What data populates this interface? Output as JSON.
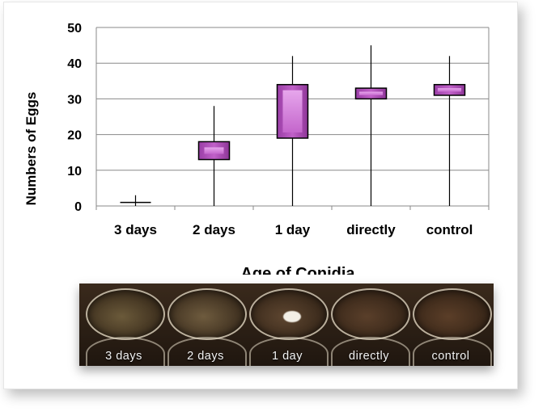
{
  "chart_data": {
    "type": "box",
    "ylabel": "Numbers of Eggs",
    "xlabel": "Age of Conidia",
    "ylim": [
      0,
      50
    ],
    "yticks": [
      0,
      10,
      20,
      30,
      40,
      50
    ],
    "grid": true,
    "categories": [
      "3 days",
      "2 days",
      "1 day",
      "directly",
      "control"
    ],
    "boxes": [
      {
        "min": 0,
        "q1": 1,
        "q3": 1,
        "max": 3
      },
      {
        "min": 0,
        "q1": 13,
        "q3": 18,
        "max": 28
      },
      {
        "min": 0,
        "q1": 19,
        "q3": 34,
        "max": 42
      },
      {
        "min": 0,
        "q1": 30,
        "q3": 33,
        "max": 45
      },
      {
        "min": 0,
        "q1": 31,
        "q3": 34,
        "max": 42
      }
    ],
    "box_color": "#c060c8"
  },
  "photo": {
    "labels": [
      "3 days",
      "2 days",
      "1 day",
      "directly",
      "control"
    ],
    "well_colors": [
      "#6b5a3a",
      "#6e5b3e",
      "#5e4630",
      "#5a3f2a",
      "#5b3e28"
    ]
  }
}
